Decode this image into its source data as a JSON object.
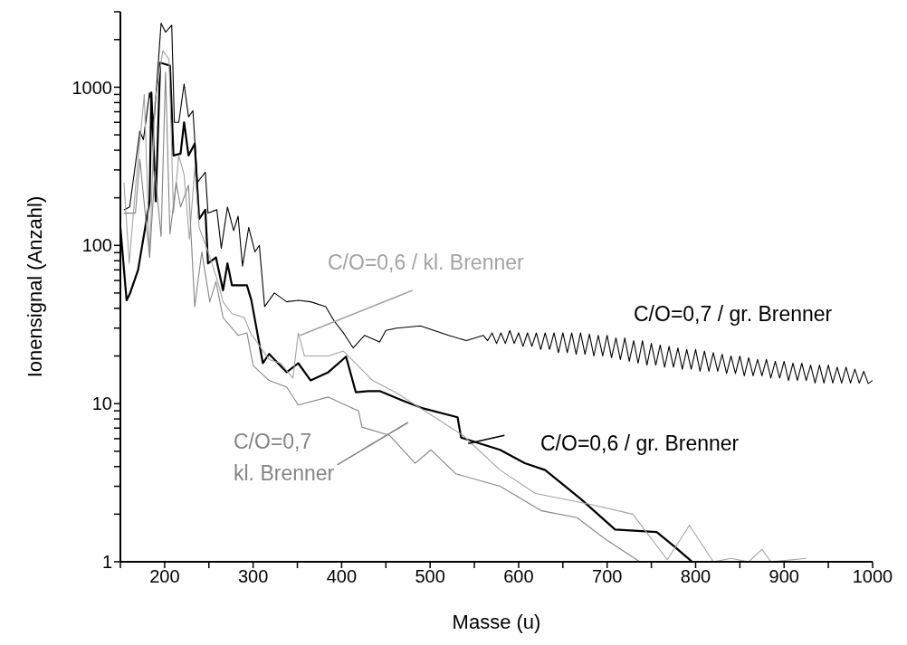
{
  "chart_data": {
    "type": "line",
    "xlabel": "Masse (u)",
    "ylabel": "Ionensignal (Anzahl)",
    "log": true,
    "xlim": [
      150,
      1000
    ],
    "ylim": [
      1,
      3000
    ],
    "xticks": [
      {
        "value": 150,
        "label": null
      },
      200,
      {
        "value": 250,
        "label": null
      },
      300,
      {
        "value": 350,
        "label": null
      },
      400,
      {
        "value": 450,
        "label": null
      },
      500,
      {
        "value": 550,
        "label": null
      },
      600,
      {
        "value": 650,
        "label": null
      },
      700,
      {
        "value": 750,
        "label": null
      },
      800,
      {
        "value": 850,
        "label": null
      },
      900,
      {
        "value": 950,
        "label": null
      },
      1000
    ],
    "yticks": [
      1,
      {
        "value": 2,
        "label": null
      },
      {
        "value": 3,
        "label": null
      },
      {
        "value": 4,
        "label": null
      },
      {
        "value": 5,
        "label": null
      },
      {
        "value": 6,
        "label": null
      },
      {
        "value": 7,
        "label": null
      },
      {
        "value": 8,
        "label": null
      },
      {
        "value": 9,
        "label": null
      },
      10,
      {
        "value": 20,
        "label": null
      },
      {
        "value": 30,
        "label": null
      },
      {
        "value": 40,
        "label": null
      },
      {
        "value": 50,
        "label": null
      },
      {
        "value": 60,
        "label": null
      },
      {
        "value": 70,
        "label": null
      },
      {
        "value": 80,
        "label": null
      },
      {
        "value": 90,
        "label": null
      },
      100,
      {
        "value": 200,
        "label": null
      },
      {
        "value": 300,
        "label": null
      },
      {
        "value": 400,
        "label": null
      },
      {
        "value": 500,
        "label": null
      },
      {
        "value": 600,
        "label": null
      },
      {
        "value": 700,
        "label": null
      },
      {
        "value": 800,
        "label": null
      },
      {
        "value": 900,
        "label": null
      },
      1000,
      {
        "value": 2000,
        "label": null
      },
      {
        "value": 3000,
        "label": null
      }
    ],
    "marker": "none",
    "line_style": "solid",
    "series": [
      {
        "name": "C/O=0,7 / gr. Brenner",
        "color": "#000000",
        "x": [
          154,
          160.5,
          172,
          176,
          183,
          188,
          196,
          201,
          208,
          211,
          216,
          222,
          227,
          232,
          237,
          246,
          249,
          259,
          264,
          271,
          278,
          283,
          288,
          295,
          302,
          307,
          313,
          324,
          338,
          351,
          365,
          382,
          392,
          402,
          413,
          426,
          443,
          450,
          462,
          489,
          521,
          541,
          560,
          565,
          570,
          575,
          580,
          585,
          590,
          595,
          600,
          605,
          610,
          615,
          620,
          625,
          630,
          635,
          640,
          645,
          650,
          655,
          660,
          665,
          670,
          675,
          680,
          685,
          690,
          695,
          700,
          705,
          710,
          715,
          720,
          725,
          730,
          735,
          740,
          745,
          750,
          755,
          760,
          765,
          770,
          775,
          780,
          785,
          790,
          795,
          800,
          805,
          810,
          815,
          820,
          825,
          830,
          835,
          840,
          845,
          850,
          855,
          860,
          865,
          870,
          875,
          880,
          885,
          890,
          895,
          900,
          905,
          910,
          915,
          920,
          925,
          930,
          935,
          940,
          945,
          950,
          955,
          960,
          965,
          970,
          975,
          980,
          985,
          990,
          995,
          1000
        ],
        "values": [
          168,
          175,
          527,
          466,
          925,
          600,
          2540,
          2230,
          2470,
          600,
          600,
          1050,
          650,
          710,
          250,
          290,
          160,
          168,
          96,
          175,
          124,
          153,
          74,
          130,
          91,
          100,
          41,
          50,
          44,
          45,
          44,
          41,
          33,
          28,
          22.5,
          27,
          24.5,
          29,
          30,
          31,
          27,
          25,
          27,
          25,
          28,
          24,
          28,
          24,
          29,
          24,
          28,
          23,
          28,
          23,
          28,
          22,
          28,
          22,
          28,
          21,
          28,
          21,
          28,
          20.5,
          28,
          20.5,
          27.5,
          20,
          27,
          20,
          27,
          19.5,
          26,
          19,
          26,
          18.5,
          25,
          18,
          25,
          17.5,
          24,
          17.5,
          23.5,
          17,
          23,
          17,
          22.5,
          16.5,
          22,
          16.5,
          22,
          16,
          21.5,
          16,
          21,
          16,
          20.5,
          15.5,
          20,
          15.5,
          20,
          15,
          19.5,
          15,
          19,
          15,
          19,
          14.5,
          18.5,
          14.5,
          18.5,
          14,
          18,
          14,
          18,
          14,
          17.5,
          13.5,
          17.5,
          13.5,
          17.5,
          13.5,
          17,
          13.5,
          17,
          13.5,
          16.5,
          13.5,
          16,
          13.4,
          14
        ]
      },
      {
        "name": "C/O=0,6 / gr. Brenner",
        "color": "#000000",
        "x": [
          150,
          157,
          161,
          170,
          183,
          185,
          190,
          195,
          206,
          210,
          218,
          222,
          227,
          234,
          239,
          246,
          249,
          258,
          266,
          271,
          276,
          293,
          298,
          311,
          318,
          338,
          351,
          365,
          385,
          405,
          416,
          430,
          443,
          470,
          490,
          531,
          535,
          579,
          607,
          630,
          670,
          709,
          756,
          776,
          796
        ],
        "values": [
          130,
          45,
          50,
          70,
          190,
          925,
          190,
          1430,
          1370,
          370,
          380,
          600,
          370,
          440,
          147,
          168,
          77,
          84,
          52,
          77,
          56,
          56,
          45,
          18,
          20.6,
          15.8,
          18,
          14,
          15.8,
          19.8,
          11.8,
          12,
          12,
          10.4,
          9.4,
          8.2,
          6.1,
          5.1,
          4.2,
          3.8,
          2.5,
          1.6,
          1.54,
          1.25,
          1
        ]
      },
      {
        "name": "C/O=0,6 / kl. Brenner",
        "color": "#a3a3a3",
        "x": [
          154,
          160,
          167,
          177,
          183,
          189,
          198,
          205,
          210,
          216,
          222,
          228,
          234,
          239,
          249,
          259,
          266,
          276,
          290,
          297,
          318,
          331,
          345,
          351,
          358,
          385,
          402,
          435,
          462,
          537,
          579,
          619,
          682,
          729,
          768,
          793,
          820,
          840,
          860,
          875,
          885,
          925
        ],
        "values": [
          250,
          77,
          230,
          900,
          84,
          800,
          1700,
          1500,
          160,
          370,
          280,
          109,
          310,
          130,
          91,
          62,
          44,
          37,
          35,
          28,
          19,
          18,
          14.5,
          28,
          20,
          20,
          21.5,
          14,
          11.7,
          6.3,
          3.8,
          2.7,
          2.3,
          2,
          1.03,
          1.7,
          1,
          1.05,
          1,
          1.2,
          1,
          1.05
        ]
      },
      {
        "name": "C/O=0,7 kl. Brenner",
        "color": "#858585",
        "x": [
          154,
          167,
          172,
          183,
          189,
          196,
          201,
          206,
          213,
          218,
          227,
          234,
          242,
          251,
          258,
          266,
          283,
          293,
          300,
          318,
          338,
          351,
          385,
          419,
          423,
          454,
          483,
          501,
          529,
          579,
          626,
          666,
          698,
          737
        ],
        "values": [
          160,
          160,
          350,
          84,
          295,
          114,
          1250,
          118,
          250,
          175,
          240,
          41,
          91,
          44,
          59,
          35,
          27,
          28,
          17.4,
          14,
          12.7,
          9.8,
          11,
          9,
          7.1,
          6.3,
          4.2,
          5.1,
          3.6,
          3,
          2.1,
          1.9,
          1.39,
          1
        ]
      }
    ]
  }
}
